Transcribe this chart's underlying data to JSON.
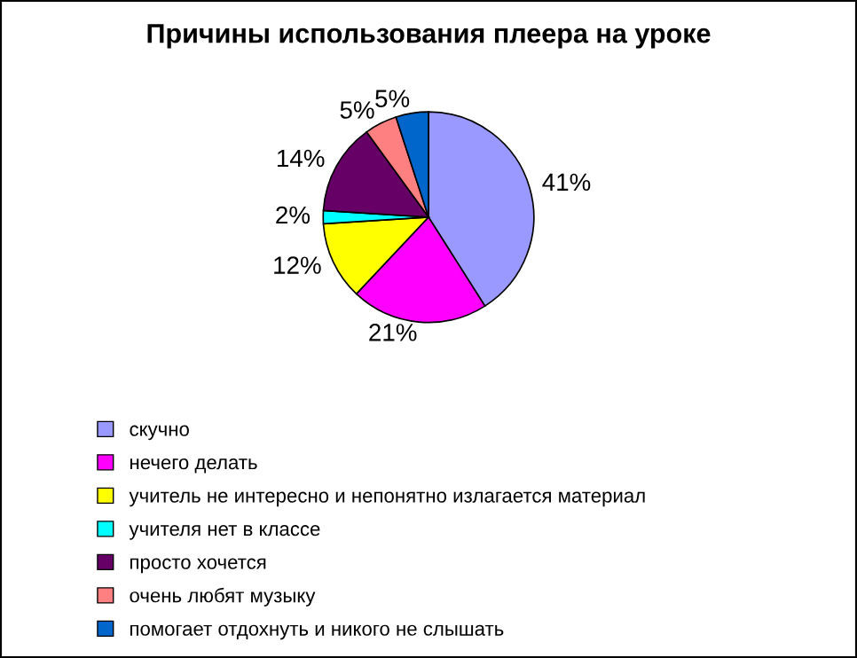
{
  "chart_data": {
    "type": "pie",
    "title": "Причины использования плеера на уроке",
    "categories": [
      "скучно",
      "нечего делать",
      "учитель не интересно и непонятно излагается материал",
      "учителя нет в классе",
      "просто хочется",
      "очень любят музыку",
      "помогает отдохнуть и никого не слышать"
    ],
    "values": [
      41,
      21,
      12,
      2,
      14,
      5,
      5
    ],
    "value_labels": [
      "41%",
      "21%",
      "12%",
      "2%",
      "14%",
      "5%",
      "5%"
    ],
    "colors": [
      "#9999ff",
      "#ff00ff",
      "#ffff00",
      "#00ffff",
      "#660066",
      "#ff8080",
      "#0066cc"
    ],
    "legend": "bottom left"
  }
}
